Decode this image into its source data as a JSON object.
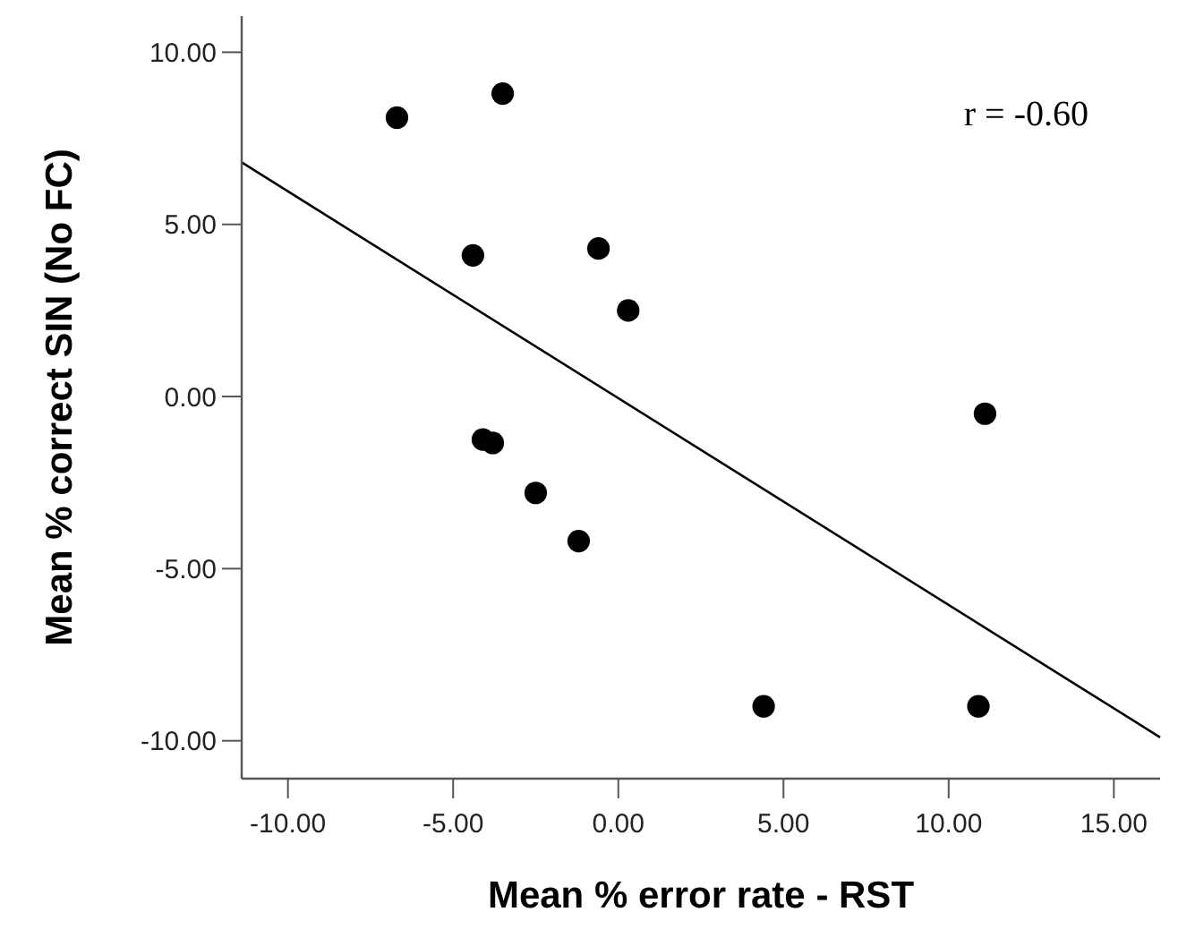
{
  "chart_data": {
    "type": "scatter",
    "xlabel": "Mean % error rate - RST",
    "ylabel": "Mean % correct SIN (No FC)",
    "annotations": [
      "r = -0.60"
    ],
    "xlim": [
      -11.4,
      16.4
    ],
    "ylim": [
      -11.1,
      11.05
    ],
    "xticks": [
      {
        "value": -10,
        "label": "-10.00"
      },
      {
        "value": -5,
        "label": "-5.00"
      },
      {
        "value": 0,
        "label": "0.00"
      },
      {
        "value": 5,
        "label": "5.00"
      },
      {
        "value": 10,
        "label": "10.00"
      },
      {
        "value": 15,
        "label": "15.00"
      }
    ],
    "yticks": [
      {
        "value": -10,
        "label": "-10.00"
      },
      {
        "value": -5,
        "label": "-5.00"
      },
      {
        "value": 0,
        "label": "0.00"
      },
      {
        "value": 5,
        "label": "5.00"
      },
      {
        "value": 10,
        "label": "10.00"
      }
    ],
    "grid": false,
    "marker": "circle",
    "series": [
      {
        "color": "#000000",
        "x": [
          -6.7,
          -3.5,
          -4.4,
          -0.6,
          0.3,
          -4.1,
          -3.8,
          11.1,
          -2.5,
          -1.2,
          4.4,
          10.9
        ],
        "values": [
          8.1,
          8.8,
          4.1,
          4.3,
          2.5,
          -1.25,
          -1.35,
          -0.5,
          -2.8,
          -4.2,
          -9.0,
          -9.0
        ]
      },
      {
        "type": "line",
        "color": "#000000",
        "x": [
          -11.4,
          16.4
        ],
        "values": [
          6.8,
          -9.9
        ],
        "marker": "none",
        "line_style": "solid"
      }
    ]
  }
}
